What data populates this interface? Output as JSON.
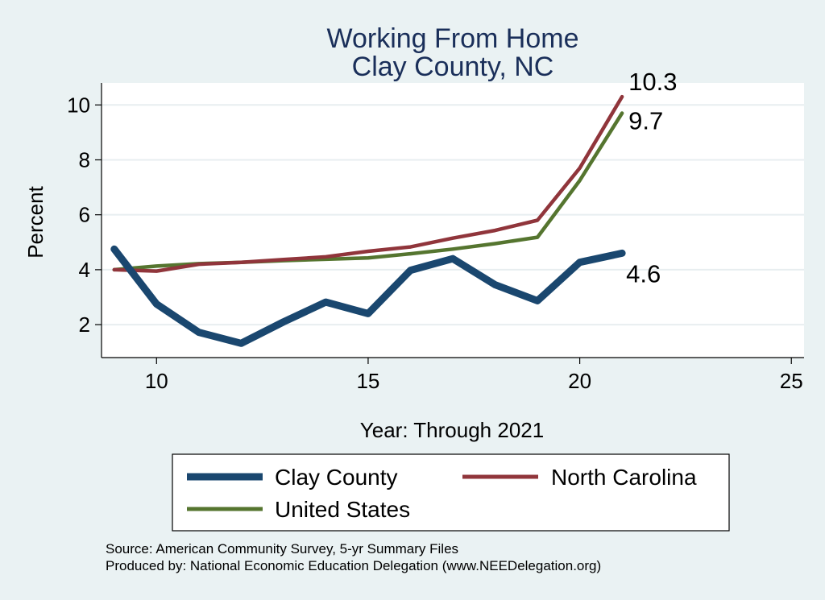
{
  "chart_data": {
    "type": "line",
    "title": [
      "Working From Home",
      "Clay County, NC"
    ],
    "xlabel": "Year: Through 2021",
    "ylabel": "Percent",
    "xlim": [
      8.7,
      25.3
    ],
    "ylim": [
      0.8,
      10.8
    ],
    "xticks": [
      10,
      15,
      20,
      25
    ],
    "yticks": [
      2,
      4,
      6,
      8,
      10
    ],
    "grid": true,
    "legend_position": "bottom",
    "x": [
      9,
      10,
      11,
      12,
      13,
      14,
      15,
      16,
      17,
      18,
      19,
      20,
      21
    ],
    "series": [
      {
        "name": "Clay County",
        "color": "#1a476f",
        "values": [
          4.75,
          2.75,
          1.72,
          1.32,
          2.1,
          2.82,
          2.4,
          3.98,
          4.4,
          3.45,
          2.87,
          4.27,
          4.6
        ],
        "end_label": "4.6"
      },
      {
        "name": "North Carolina",
        "color": "#90353b",
        "values": [
          4.0,
          3.95,
          4.2,
          4.27,
          4.37,
          4.47,
          4.67,
          4.83,
          5.15,
          5.43,
          5.8,
          7.7,
          10.3
        ],
        "end_label": "10.3"
      },
      {
        "name": "United States",
        "color": "#55752f",
        "values": [
          4.0,
          4.13,
          4.22,
          4.27,
          4.33,
          4.38,
          4.43,
          4.58,
          4.75,
          4.95,
          5.18,
          7.25,
          9.7
        ],
        "end_label": "9.7"
      }
    ],
    "notes": [
      "Source: American Community Survey, 5-yr Summary Files",
      "Produced by: National Economic Education Delegation (www.NEEDelegation.org)"
    ]
  }
}
